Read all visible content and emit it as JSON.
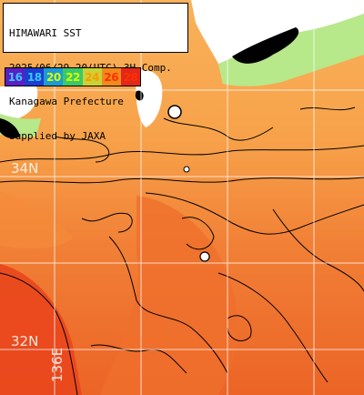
{
  "title_box": {
    "line1": "HIMAWARI SST",
    "line2": "2025/06/29 20(UTC) 3H Comp.",
    "line3": "Kanagawa Prefecture",
    "line4": "supplied by JAXA"
  },
  "color_scale": [
    {
      "label": "16",
      "color": "#5b1fc4",
      "text_color": "#33ccff"
    },
    {
      "label": "18",
      "color": "#1e3ccf",
      "text_color": "#33ccff"
    },
    {
      "label": "20",
      "color": "#1c9ad6",
      "text_color": "#d8ff00"
    },
    {
      "label": "22",
      "color": "#39c86a",
      "text_color": "#d8ff00"
    },
    {
      "label": "24",
      "color": "#c9d236",
      "text_color": "#ff9a00"
    },
    {
      "label": "26",
      "color": "#f08a1c",
      "text_color": "#ff3000"
    },
    {
      "label": "28",
      "color": "#e2271b",
      "text_color": "#ff3000"
    }
  ],
  "latitude_labels": [
    "34N",
    "32N"
  ],
  "longitude_labels": [
    "136E"
  ],
  "colors": {
    "sea_warm": "#f7a24a",
    "sea_hot": "#ef6f2c",
    "sea_hottest": "#e9461c",
    "land": "#ffffff",
    "cloud": "#000000",
    "cool_coast": "#b7e88a"
  }
}
